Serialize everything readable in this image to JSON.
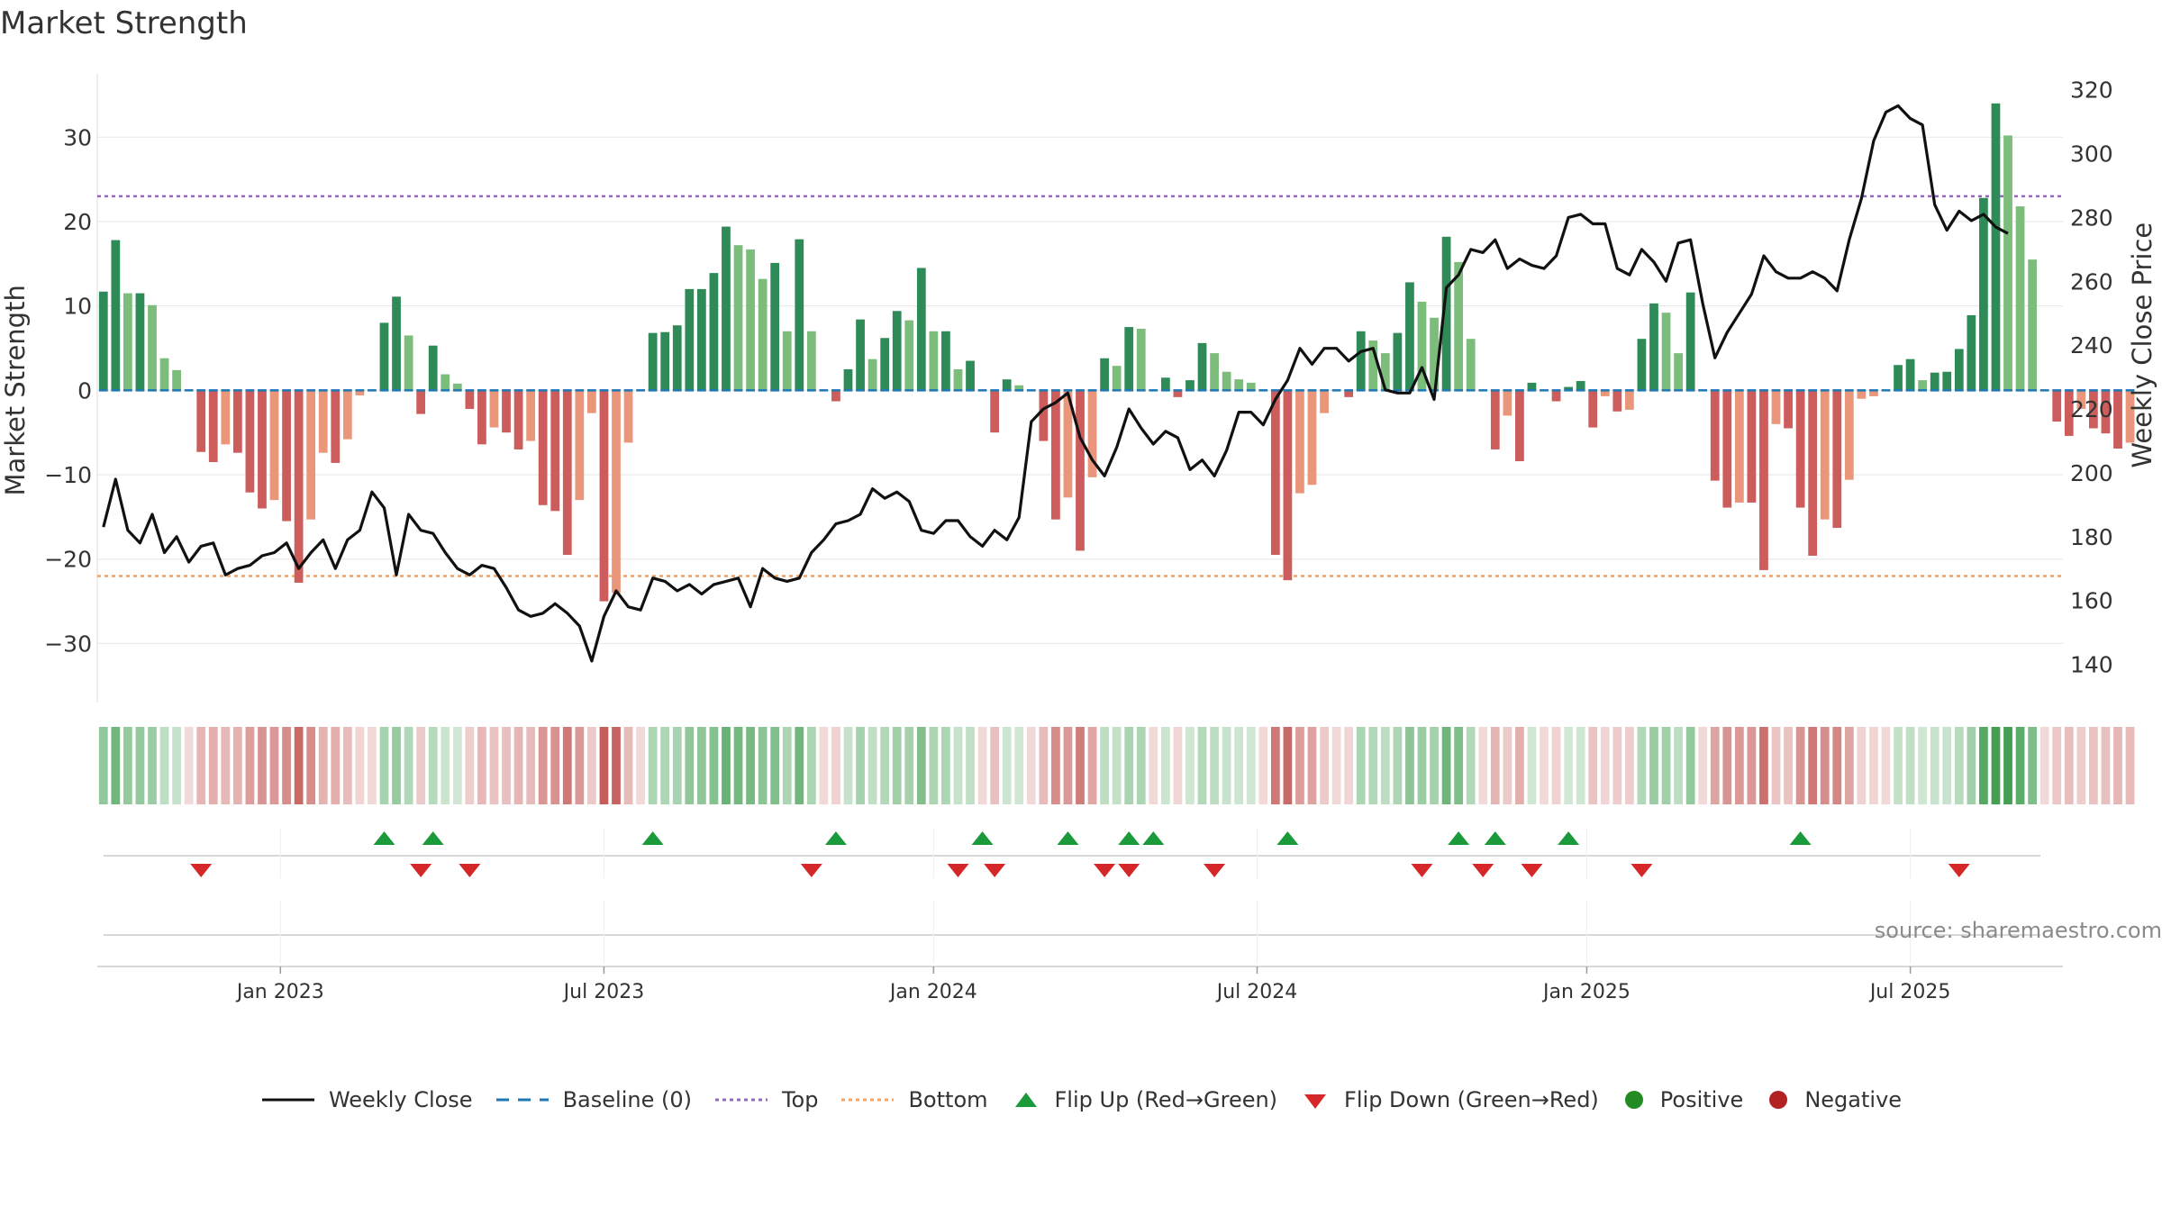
{
  "title": "Market Strength",
  "source": "source: sharemaestro.com",
  "legend": [
    {
      "key": "close",
      "label": "Weekly Close"
    },
    {
      "key": "baseline",
      "label": "Baseline (0)"
    },
    {
      "key": "top",
      "label": "Top"
    },
    {
      "key": "bottom",
      "label": "Bottom"
    },
    {
      "key": "flip_up",
      "label": "Flip Up (Red→Green)"
    },
    {
      "key": "flip_down",
      "label": "Flip Down (Green→Red)"
    },
    {
      "key": "positive",
      "label": "Positive"
    },
    {
      "key": "negative",
      "label": "Negative"
    }
  ],
  "colors": {
    "pos_strong": "#2e8b57",
    "pos_light": "#7cbd7c",
    "neg_strong": "#cd5c5c",
    "neg_light": "#e9967a",
    "close": "#111111",
    "baseline": "#1f77b4",
    "top": "#9467bd",
    "bottom": "#f4a261",
    "flip_up": "#1a9a3a",
    "flip_down": "#d62728",
    "positive": "#228b22",
    "negative": "#b22222",
    "grid": "#e6e6e6",
    "text": "#333333"
  },
  "chart_data": {
    "type": "bar",
    "title": "Market Strength",
    "ylabel": "Market Strength",
    "y2label": "Weekly Close Price",
    "ylim": [
      -37,
      37.5
    ],
    "y2lim": [
      128,
      325
    ],
    "yticks": [
      30,
      20,
      10,
      0,
      -10,
      -20,
      -30
    ],
    "ytick_labels": [
      "30",
      "20",
      "10",
      "0",
      "−10",
      "−20",
      "−30"
    ],
    "y2ticks": [
      320,
      300,
      280,
      260,
      240,
      220,
      200,
      180,
      160,
      140
    ],
    "xlim": [
      -0.5,
      160.5
    ],
    "xticks": [
      {
        "label": "Jan 2023",
        "x": 14.5
      },
      {
        "label": "Jul 2023",
        "x": 41
      },
      {
        "label": "Jan 2024",
        "x": 68
      },
      {
        "label": "Jul 2024",
        "x": 94.5
      },
      {
        "label": "Jan 2025",
        "x": 121.5
      },
      {
        "label": "Jul 2025",
        "x": 148
      }
    ],
    "top_line": 23,
    "bottom_line": -22,
    "baseline": 0,
    "strength": [
      11.7,
      17.8,
      11.5,
      11.5,
      10.1,
      3.8,
      2.4,
      0,
      -7.3,
      -8.5,
      -6.4,
      -7.4,
      -12.1,
      -14,
      -13,
      -15.5,
      -22.8,
      -15.3,
      -7.4,
      -8.6,
      -5.8,
      -0.6,
      0,
      8,
      11.1,
      6.5,
      -2.8,
      5.3,
      1.9,
      0.8,
      -2.2,
      -6.4,
      -4.4,
      -5,
      -7,
      -6,
      -13.6,
      -14.3,
      -19.5,
      -13,
      -2.7,
      -25,
      -24,
      -6.2,
      0,
      6.8,
      6.9,
      7.7,
      12,
      12,
      13.9,
      19.4,
      17.2,
      16.7,
      13.2,
      15.1,
      7,
      17.9,
      7,
      0,
      -1.3,
      2.5,
      8.4,
      3.7,
      6.2,
      9.4,
      8.3,
      14.5,
      7,
      7,
      2.5,
      3.5,
      0,
      -5,
      1.3,
      0.6,
      0,
      -6,
      -15.3,
      -12.7,
      -19,
      -10.3,
      3.8,
      2.9,
      7.5,
      7.3,
      0,
      1.5,
      -0.8,
      1.2,
      5.6,
      4.4,
      2.2,
      1.3,
      0.9,
      0,
      -19.5,
      -22.5,
      -12.2,
      -11.2,
      -2.7,
      0,
      -0.8,
      7,
      5.9,
      4.4,
      6.8,
      12.8,
      10.5,
      8.6,
      18.2,
      15.2,
      6.1,
      0,
      -7,
      -3,
      -8.4,
      0.9,
      0,
      -1.3,
      0.4,
      1.1,
      -4.4,
      -0.7,
      -2.5,
      -2.3,
      6.1,
      10.3,
      9.2,
      4.4,
      11.6,
      0,
      -10.7,
      -13.9,
      -13.3,
      -13.3,
      -21.3,
      -4,
      -4.5,
      -13.9,
      -19.6,
      -15.3,
      -16.3,
      -10.6,
      -1,
      -0.7,
      0,
      3,
      3.7,
      1.2,
      2.1,
      2.2,
      4.9,
      8.9,
      22.8,
      34,
      30.2,
      21.8,
      15.5,
      0,
      -3.7,
      -5.4,
      -2.2,
      -4.5,
      -5.1,
      -6.9,
      -6.2
    ],
    "weekly_close": [
      183,
      198,
      182,
      178,
      187,
      175,
      180,
      172,
      177,
      178,
      168,
      170,
      171,
      174,
      175,
      178,
      170,
      175,
      179,
      170,
      179,
      182,
      194,
      189,
      168,
      187,
      182,
      181,
      175,
      170,
      168,
      171,
      170,
      164,
      157,
      155,
      156,
      159,
      156,
      152,
      141,
      155,
      163,
      158,
      157,
      167,
      166,
      163,
      165,
      162,
      165,
      166,
      167,
      158,
      170,
      167,
      166,
      167,
      175,
      179,
      184,
      185,
      187,
      195,
      192,
      194,
      191,
      182,
      181,
      185,
      185,
      180,
      177,
      182,
      179,
      186,
      216,
      220,
      222,
      225,
      211,
      204,
      199,
      208,
      220,
      214,
      209,
      213,
      211,
      201,
      204,
      199,
      207,
      219,
      219,
      215,
      223,
      229,
      239,
      234,
      239,
      239,
      235,
      238,
      239,
      226,
      225,
      225,
      233,
      223,
      258,
      262,
      270,
      269,
      273,
      264,
      267,
      265,
      264,
      268,
      280,
      281,
      278,
      278,
      264,
      262,
      270,
      266,
      260,
      272,
      273,
      253,
      236,
      244,
      250,
      256,
      268,
      263,
      261,
      261,
      263,
      261,
      257,
      273,
      286,
      304,
      313,
      315,
      311,
      309,
      284,
      276,
      282,
      279,
      281,
      277,
      275
    ],
    "flip_up": [
      23,
      27,
      45,
      60,
      72,
      79,
      84,
      86,
      97,
      111,
      114,
      120,
      139
    ],
    "flip_down": [
      8,
      26,
      30,
      58,
      70,
      73,
      82,
      84,
      91,
      108,
      113,
      117,
      126,
      152
    ]
  }
}
